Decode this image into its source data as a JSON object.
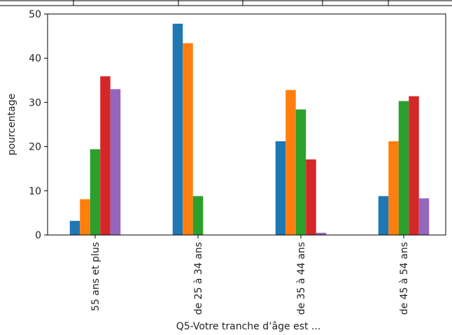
{
  "chart_data": {
    "type": "bar",
    "title": "",
    "xlabel": "Q5-Votre tranche d’âge est ...",
    "ylabel": "pourcentage",
    "ylim": [
      0,
      50
    ],
    "yticks": [
      0,
      10,
      20,
      30,
      40,
      50
    ],
    "grid": false,
    "legend": "none",
    "categories": [
      "55 ans et plus",
      "de 25 à 34 ans",
      "de 35 à 44 ans",
      "de 45 à 54 ans"
    ],
    "series": [
      {
        "color": "#1f77b4",
        "values": [
          3.2,
          47.8,
          21.2,
          8.8
        ]
      },
      {
        "color": "#ff7f0e",
        "values": [
          8.1,
          43.4,
          32.8,
          21.2
        ]
      },
      {
        "color": "#2ca02c",
        "values": [
          19.4,
          8.8,
          28.4,
          30.3
        ]
      },
      {
        "color": "#d62728",
        "values": [
          35.9,
          0,
          17.1,
          31.4
        ]
      },
      {
        "color": "#9467bd",
        "values": [
          33.0,
          0,
          0.5,
          8.3
        ]
      }
    ]
  }
}
